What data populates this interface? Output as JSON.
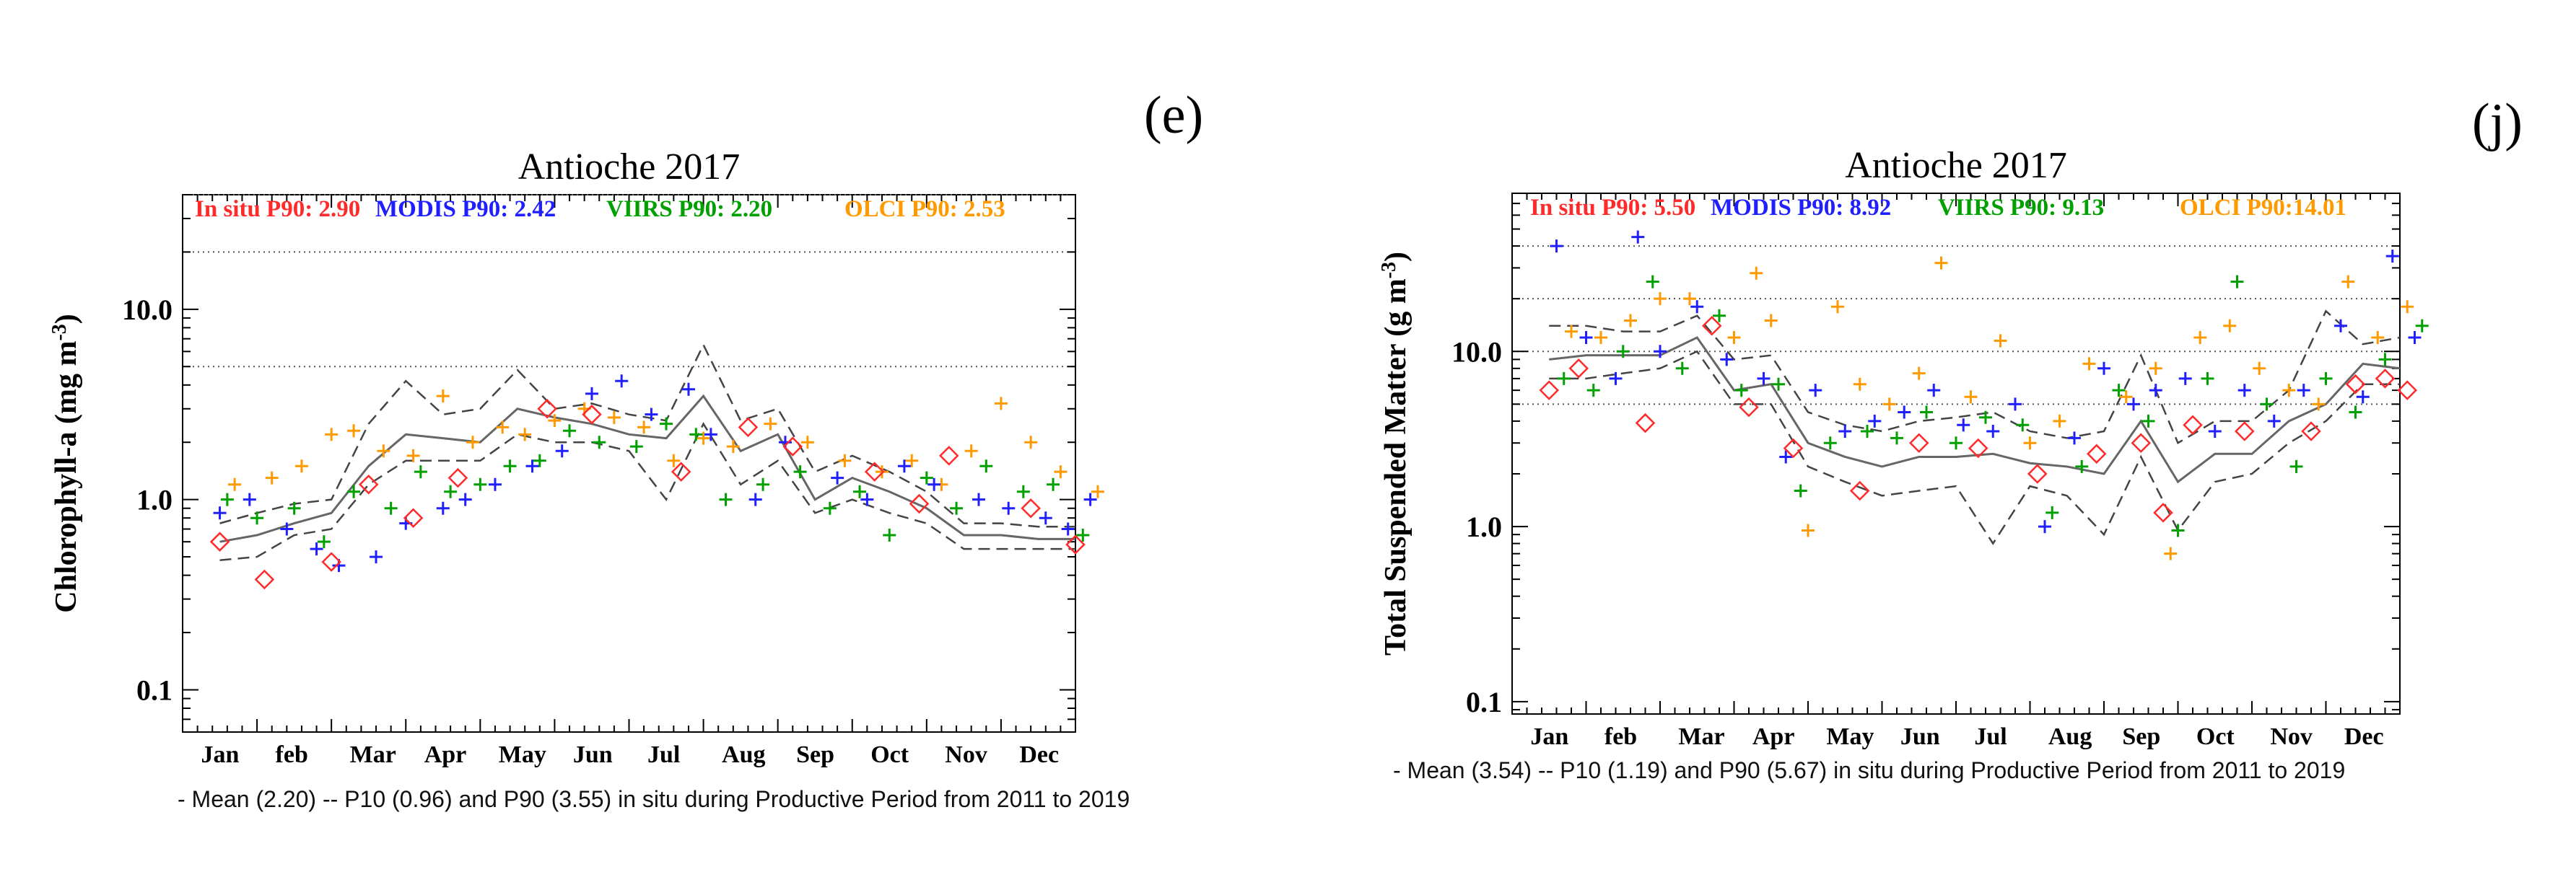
{
  "panel_labels": {
    "left": "(e)",
    "right": "(j)"
  },
  "captions": {
    "left": "- Mean (2.20) -- P10 (0.96) and P90 (3.55) in situ during Productive Period from 2011 to 2019",
    "right": "- Mean (3.54) -- P10 (1.19) and P90 (5.67) in situ during Productive Period from 2011 to 2019"
  },
  "colors": {
    "insitu": "#ff2a2a",
    "modis": "#1f1fff",
    "viirs": "#00a000",
    "olci": "#ff9900",
    "mean": "#666666",
    "pct": "#444444"
  },
  "chart_data": [
    {
      "type": "scatter",
      "title": "Antioche 2017",
      "ylabel": "Chlorophyll-a (mg m",
      "ylabel_sup": "-3",
      "ylabel_close": ")",
      "yscale": "log",
      "ylim": [
        0.06,
        40
      ],
      "yticks": [
        0.1,
        1.0,
        10.0
      ],
      "ytick_labels": [
        "0.1",
        "1.0",
        "10.0"
      ],
      "hgrid": [
        5,
        20,
        40
      ],
      "months": [
        "Jan",
        "feb",
        "Mar",
        "Apr",
        "May",
        "Jun",
        "Jul",
        "Aug",
        "Sep",
        "Oct",
        "Nov",
        "Dec"
      ],
      "legend": [
        {
          "key": "insitu",
          "label": "In situ P90: 2.90"
        },
        {
          "key": "modis",
          "label": "MODIS P90: 2.42"
        },
        {
          "key": "viirs",
          "label": "VIIRS P90: 2.20"
        },
        {
          "key": "olci",
          "label": "OLCI P90: 2.53"
        }
      ],
      "mean_line": {
        "x": [
          0,
          0.5,
          1,
          1.5,
          2,
          2.5,
          3,
          3.5,
          4,
          4.5,
          5,
          5.5,
          6,
          6.5,
          7,
          7.5,
          8,
          8.5,
          9,
          9.5,
          10,
          10.5,
          11,
          11.5
        ],
        "y": [
          0.6,
          0.65,
          0.75,
          0.85,
          1.5,
          2.2,
          2.1,
          2.0,
          3.0,
          2.7,
          2.5,
          2.2,
          2.1,
          3.5,
          1.8,
          2.2,
          1.0,
          1.3,
          1.1,
          0.9,
          0.65,
          0.65,
          0.62,
          0.62
        ]
      },
      "p10_line": {
        "x": [
          0,
          0.5,
          1,
          1.5,
          2,
          2.5,
          3,
          3.5,
          4,
          4.5,
          5,
          5.5,
          6,
          6.5,
          7,
          7.5,
          8,
          8.5,
          9,
          9.5,
          10,
          10.5,
          11,
          11.5
        ],
        "y": [
          0.48,
          0.5,
          0.65,
          0.7,
          1.2,
          1.6,
          1.6,
          1.6,
          2.2,
          2.0,
          2.0,
          1.8,
          1.0,
          2.5,
          1.2,
          1.6,
          0.85,
          1.0,
          0.85,
          0.75,
          0.55,
          0.55,
          0.55,
          0.55
        ]
      },
      "p90_line": {
        "x": [
          0,
          0.5,
          1,
          1.5,
          2,
          2.5,
          3,
          3.5,
          4,
          4.5,
          5,
          5.5,
          6,
          6.5,
          7,
          7.5,
          8,
          8.5,
          9,
          9.5,
          10,
          10.5,
          11,
          11.5
        ],
        "y": [
          0.75,
          0.85,
          0.95,
          1.0,
          2.5,
          4.2,
          2.8,
          3.0,
          4.8,
          3.0,
          3.2,
          2.8,
          2.6,
          6.5,
          2.6,
          3.0,
          1.4,
          1.7,
          1.4,
          1.1,
          0.75,
          0.75,
          0.72,
          0.72
        ]
      },
      "insitu": [
        [
          0,
          0.6
        ],
        [
          0.6,
          0.38
        ],
        [
          1.5,
          0.47
        ],
        [
          2,
          1.2
        ],
        [
          2.6,
          0.8
        ],
        [
          3.2,
          1.3
        ],
        [
          4.4,
          3.0
        ],
        [
          5,
          2.8
        ],
        [
          6.2,
          1.4
        ],
        [
          7.1,
          2.4
        ],
        [
          7.7,
          1.9
        ],
        [
          8.8,
          1.4
        ],
        [
          9.4,
          0.95
        ],
        [
          9.8,
          1.7
        ],
        [
          10.9,
          0.9
        ],
        [
          11.5,
          0.58
        ]
      ],
      "modis": [
        [
          0,
          0.85
        ],
        [
          0.4,
          1.0
        ],
        [
          0.9,
          0.7
        ],
        [
          1.3,
          0.55
        ],
        [
          1.6,
          0.45
        ],
        [
          2.1,
          0.5
        ],
        [
          2.5,
          0.75
        ],
        [
          3.0,
          0.9
        ],
        [
          3.3,
          1.0
        ],
        [
          3.7,
          1.2
        ],
        [
          4.2,
          1.5
        ],
        [
          4.6,
          1.8
        ],
        [
          5.0,
          3.6
        ],
        [
          5.4,
          4.2
        ],
        [
          5.8,
          2.8
        ],
        [
          6.3,
          3.8
        ],
        [
          6.6,
          2.2
        ],
        [
          7.2,
          1.0
        ],
        [
          7.6,
          2.0
        ],
        [
          8.3,
          1.3
        ],
        [
          8.7,
          1.0
        ],
        [
          9.2,
          1.5
        ],
        [
          9.6,
          1.2
        ],
        [
          10.2,
          1.0
        ],
        [
          10.6,
          0.9
        ],
        [
          11.1,
          0.8
        ],
        [
          11.4,
          0.7
        ],
        [
          11.7,
          1.0
        ]
      ],
      "viirs": [
        [
          0.1,
          1.0
        ],
        [
          0.5,
          0.8
        ],
        [
          1.0,
          0.9
        ],
        [
          1.4,
          0.6
        ],
        [
          1.8,
          1.1
        ],
        [
          2.3,
          0.9
        ],
        [
          2.7,
          1.4
        ],
        [
          3.1,
          1.1
        ],
        [
          3.5,
          1.2
        ],
        [
          3.9,
          1.5
        ],
        [
          4.3,
          1.6
        ],
        [
          4.7,
          2.3
        ],
        [
          5.1,
          2.0
        ],
        [
          5.6,
          1.9
        ],
        [
          6.0,
          2.5
        ],
        [
          6.4,
          2.2
        ],
        [
          6.8,
          1.0
        ],
        [
          7.3,
          1.2
        ],
        [
          7.8,
          1.4
        ],
        [
          8.2,
          0.9
        ],
        [
          8.6,
          1.1
        ],
        [
          9.0,
          0.65
        ],
        [
          9.5,
          1.3
        ],
        [
          9.9,
          0.9
        ],
        [
          10.3,
          1.5
        ],
        [
          10.8,
          1.1
        ],
        [
          11.2,
          1.2
        ],
        [
          11.6,
          0.65
        ]
      ],
      "olci": [
        [
          0.2,
          1.2
        ],
        [
          0.7,
          1.3
        ],
        [
          1.1,
          1.5
        ],
        [
          1.5,
          2.2
        ],
        [
          1.8,
          2.3
        ],
        [
          2.2,
          1.8
        ],
        [
          2.6,
          1.7
        ],
        [
          3.0,
          3.5
        ],
        [
          3.4,
          2.0
        ],
        [
          3.8,
          2.4
        ],
        [
          4.1,
          2.2
        ],
        [
          4.5,
          2.6
        ],
        [
          4.9,
          3.0
        ],
        [
          5.3,
          2.7
        ],
        [
          5.7,
          2.4
        ],
        [
          6.1,
          1.6
        ],
        [
          6.5,
          2.1
        ],
        [
          6.9,
          1.9
        ],
        [
          7.4,
          2.5
        ],
        [
          7.9,
          2.0
        ],
        [
          8.4,
          1.6
        ],
        [
          8.9,
          1.4
        ],
        [
          9.3,
          1.6
        ],
        [
          9.7,
          1.2
        ],
        [
          10.1,
          1.8
        ],
        [
          10.5,
          3.2
        ],
        [
          10.9,
          2.0
        ],
        [
          11.3,
          1.4
        ],
        [
          11.8,
          1.1
        ]
      ]
    },
    {
      "type": "scatter",
      "title": "Antioche 2017",
      "ylabel": "Total Suspended Matter (g m",
      "ylabel_sup": "-3",
      "ylabel_close": ")",
      "yscale": "log",
      "ylim": [
        0.085,
        80
      ],
      "yticks": [
        0.1,
        1.0,
        10.0
      ],
      "ytick_labels": [
        "0.1",
        "1.0",
        "10.0"
      ],
      "hgrid": [
        5,
        10,
        20,
        40
      ],
      "months": [
        "Jan",
        "feb",
        "Mar",
        "Apr",
        "May",
        "Jun",
        "Jul",
        "Aug",
        "Sep",
        "Oct",
        "Nov",
        "Dec"
      ],
      "legend": [
        {
          "key": "insitu",
          "label": "In situ P90: 5.50"
        },
        {
          "key": "modis",
          "label": "MODIS P90: 8.92"
        },
        {
          "key": "viirs",
          "label": "VIIRS P90: 9.13"
        },
        {
          "key": "olci",
          "label": "OLCI P90:14.01"
        }
      ],
      "mean_line": {
        "x": [
          0,
          0.5,
          1,
          1.5,
          2,
          2.5,
          3,
          3.5,
          4,
          4.5,
          5,
          5.5,
          6,
          6.5,
          7,
          7.5,
          8,
          8.5,
          9,
          9.5,
          10,
          10.5,
          11,
          11.5
        ],
        "y": [
          9.0,
          9.5,
          9.5,
          9.5,
          12.0,
          6.0,
          6.5,
          3.0,
          2.5,
          2.2,
          2.5,
          2.5,
          2.6,
          2.3,
          2.2,
          2.0,
          4.0,
          1.8,
          2.6,
          2.6,
          4.0,
          5.0,
          8.5,
          8.0
        ]
      },
      "p10_line": {
        "x": [
          0,
          0.5,
          1,
          1.5,
          2,
          2.5,
          3,
          3.5,
          4,
          4.5,
          5,
          5.5,
          6,
          6.5,
          7,
          7.5,
          8,
          8.5,
          9,
          9.5,
          10,
          10.5,
          11,
          11.5
        ],
        "y": [
          7.0,
          7.0,
          7.5,
          8.0,
          10.0,
          5.0,
          5.0,
          2.2,
          1.8,
          1.5,
          1.6,
          1.7,
          0.8,
          1.7,
          1.5,
          0.9,
          2.5,
          0.95,
          1.8,
          2.0,
          3.0,
          4.0,
          6.5,
          6.5
        ]
      },
      "p90_line": {
        "x": [
          0,
          0.5,
          1,
          1.5,
          2,
          2.5,
          3,
          3.5,
          4,
          4.5,
          5,
          5.5,
          6,
          6.5,
          7,
          7.5,
          8,
          8.5,
          9,
          9.5,
          10,
          10.5,
          11,
          11.5
        ],
        "y": [
          14.0,
          14.0,
          13.0,
          13.0,
          16.0,
          9.0,
          9.5,
          4.5,
          3.8,
          3.5,
          4.0,
          4.2,
          4.5,
          3.5,
          3.2,
          3.5,
          9.5,
          3.0,
          4.0,
          4.0,
          6.0,
          17.0,
          11.0,
          12.0
        ]
      },
      "insitu": [
        [
          0,
          6.0
        ],
        [
          0.4,
          8.0
        ],
        [
          1.3,
          3.9
        ],
        [
          2.2,
          14.0
        ],
        [
          2.7,
          4.8
        ],
        [
          3.3,
          2.8
        ],
        [
          4.2,
          1.6
        ],
        [
          5.0,
          3.0
        ],
        [
          5.8,
          2.8
        ],
        [
          6.6,
          2.0
        ],
        [
          7.4,
          2.6
        ],
        [
          8.0,
          3.0
        ],
        [
          8.3,
          1.2
        ],
        [
          8.7,
          3.8
        ],
        [
          9.4,
          3.5
        ],
        [
          10.3,
          3.5
        ],
        [
          10.9,
          6.5
        ],
        [
          11.3,
          7.0
        ],
        [
          11.6,
          6.0
        ]
      ],
      "modis": [
        [
          0.1,
          40.0
        ],
        [
          0.5,
          12.0
        ],
        [
          0.9,
          7.0
        ],
        [
          1.2,
          45.0
        ],
        [
          1.5,
          10.0
        ],
        [
          2.0,
          18.0
        ],
        [
          2.4,
          9.0
        ],
        [
          2.9,
          7.0
        ],
        [
          3.2,
          2.5
        ],
        [
          3.6,
          6.0
        ],
        [
          4.0,
          3.5
        ],
        [
          4.4,
          4.0
        ],
        [
          4.8,
          4.5
        ],
        [
          5.2,
          6.0
        ],
        [
          5.6,
          3.8
        ],
        [
          6.0,
          3.5
        ],
        [
          6.3,
          5.0
        ],
        [
          6.7,
          1.0
        ],
        [
          7.1,
          3.2
        ],
        [
          7.5,
          8.0
        ],
        [
          7.9,
          5.0
        ],
        [
          8.2,
          6.0
        ],
        [
          8.6,
          7.0
        ],
        [
          9.0,
          3.5
        ],
        [
          9.4,
          6.0
        ],
        [
          9.8,
          4.0
        ],
        [
          10.2,
          6.0
        ],
        [
          10.7,
          14.0
        ],
        [
          11.0,
          5.5
        ],
        [
          11.4,
          35.0
        ],
        [
          11.7,
          12.0
        ]
      ],
      "viirs": [
        [
          0.2,
          7.0
        ],
        [
          0.6,
          6.0
        ],
        [
          1.0,
          10.0
        ],
        [
          1.4,
          25.0
        ],
        [
          1.8,
          8.0
        ],
        [
          2.3,
          16.0
        ],
        [
          2.6,
          6.0
        ],
        [
          3.1,
          6.5
        ],
        [
          3.4,
          1.6
        ],
        [
          3.8,
          3.0
        ],
        [
          4.3,
          3.5
        ],
        [
          4.7,
          3.2
        ],
        [
          5.1,
          4.5
        ],
        [
          5.5,
          3.0
        ],
        [
          5.9,
          4.2
        ],
        [
          6.4,
          3.8
        ],
        [
          6.8,
          1.2
        ],
        [
          7.2,
          2.2
        ],
        [
          7.7,
          6.0
        ],
        [
          8.1,
          4.0
        ],
        [
          8.5,
          0.95
        ],
        [
          8.9,
          7.0
        ],
        [
          9.3,
          25.0
        ],
        [
          9.7,
          5.0
        ],
        [
          10.1,
          2.2
        ],
        [
          10.5,
          7.0
        ],
        [
          10.9,
          4.5
        ],
        [
          11.3,
          9.0
        ],
        [
          11.8,
          14.0
        ]
      ],
      "olci": [
        [
          0.3,
          13.0
        ],
        [
          0.7,
          12.0
        ],
        [
          1.1,
          15.0
        ],
        [
          1.5,
          20.0
        ],
        [
          1.9,
          20.0
        ],
        [
          2.5,
          12.0
        ],
        [
          2.8,
          28.0
        ],
        [
          3.0,
          15.0
        ],
        [
          3.5,
          0.95
        ],
        [
          3.9,
          18.0
        ],
        [
          4.2,
          6.5
        ],
        [
          4.6,
          5.0
        ],
        [
          5.0,
          7.5
        ],
        [
          5.3,
          32.0
        ],
        [
          5.7,
          5.5
        ],
        [
          6.1,
          11.5
        ],
        [
          6.5,
          3.0
        ],
        [
          6.9,
          4.0
        ],
        [
          7.3,
          8.5
        ],
        [
          7.8,
          5.5
        ],
        [
          8.2,
          8.0
        ],
        [
          8.4,
          0.7
        ],
        [
          8.8,
          12.0
        ],
        [
          9.2,
          14.0
        ],
        [
          9.6,
          8.0
        ],
        [
          10.0,
          6.0
        ],
        [
          10.4,
          5.0
        ],
        [
          10.8,
          25.0
        ],
        [
          11.2,
          12.0
        ],
        [
          11.6,
          18.0
        ]
      ]
    }
  ]
}
